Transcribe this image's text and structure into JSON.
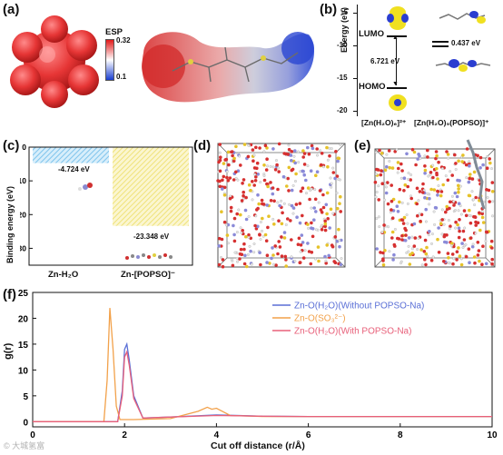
{
  "panel_labels": [
    "(a)",
    "(b)",
    "(c)",
    "(d)",
    "(e)",
    "(f)"
  ],
  "esp": {
    "title": "ESP",
    "max": "0.32",
    "min": "0.1"
  },
  "orbital": {
    "lumo": "LUMO",
    "homo": "HOMO",
    "ylabel": "Energy (eV)",
    "yticks": [
      "-5",
      "-10",
      "-15",
      "-20"
    ],
    "gap1": "6.721 eV",
    "gap2": "0.437 eV",
    "species1": "[Zn(H₂O)₆]²⁺",
    "species2": "[Zn(H₂O)₅(POPSO)]⁺"
  },
  "binding": {
    "ylabel": "Binding energy (eV)",
    "yticks": [
      "0",
      "-10",
      "-20",
      "-30"
    ],
    "categories": [
      "Zn-H₂O",
      "Zn-[POPSO]⁻"
    ],
    "value_labels": [
      "-4.724 eV",
      "-23.348 eV"
    ]
  },
  "rdf": {
    "ylabel": "g(r)",
    "xlabel": "Cut off distance (r/Å)",
    "xticks": [
      "0",
      "2",
      "4",
      "6",
      "8",
      "10"
    ],
    "yticks": [
      "0",
      "5",
      "10",
      "15",
      "20",
      "25"
    ],
    "legend": [
      "Zn-O(H₂O)(Without POPSO-Na)",
      "Zn-O(SO₃²⁻)",
      "Zn-O(H₂O)(With POPSO-Na)"
    ]
  },
  "colors": {
    "blue_series": "#5a6fd6",
    "orange_series": "#f2a14a",
    "red_series": "#e8607a",
    "bar_blue": "#7fc4ec",
    "bar_yellow": "#efe27a"
  },
  "watermark": "© 大城氢富",
  "chart_data": [
    {
      "type": "bar",
      "categories": [
        "Zn-H₂O",
        "Zn-[POPSO]⁻"
      ],
      "values": [
        -4.724,
        -23.348
      ],
      "ylabel": "Binding energy (eV)",
      "ylim": [
        -35,
        0
      ]
    },
    {
      "type": "line",
      "xlabel": "Cut off distance (r/Å)",
      "ylabel": "g(r)",
      "xlim": [
        0,
        10
      ],
      "ylim": [
        -1,
        25
      ],
      "legend_position": "top-right",
      "series": [
        {
          "name": "Zn-O(H₂O)(Without POPSO-Na)",
          "x": [
            0,
            1.85,
            1.95,
            2.0,
            2.05,
            2.1,
            2.2,
            2.4,
            3.0,
            4.0,
            4.5,
            5.0,
            6.0,
            8.0,
            10.0
          ],
          "y": [
            0,
            0,
            6,
            14,
            15,
            12,
            5,
            0.7,
            0.9,
            1.3,
            1.2,
            1.05,
            1.0,
            1.0,
            1.0
          ]
        },
        {
          "name": "Zn-O(SO₃²⁻)",
          "x": [
            0,
            1.55,
            1.62,
            1.68,
            1.75,
            1.82,
            1.9,
            2.2,
            3.0,
            3.6,
            3.8,
            3.9,
            4.0,
            4.3,
            5.0,
            6.0,
            8.0,
            10.0
          ],
          "y": [
            0,
            0,
            8,
            22,
            14,
            3,
            0.4,
            0.4,
            0.6,
            2.0,
            2.8,
            2.4,
            2.6,
            1.2,
            1.0,
            1.0,
            1.0,
            1.0
          ]
        },
        {
          "name": "Zn-O(H₂O)(With POPSO-Na)",
          "x": [
            0,
            1.85,
            1.95,
            2.0,
            2.05,
            2.1,
            2.2,
            2.4,
            3.0,
            4.0,
            4.5,
            5.0,
            6.0,
            8.0,
            10.0
          ],
          "y": [
            0,
            0,
            5,
            12.5,
            13.5,
            11,
            4.5,
            0.7,
            0.9,
            1.2,
            1.15,
            1.05,
            1.0,
            1.0,
            1.0
          ]
        }
      ]
    }
  ]
}
